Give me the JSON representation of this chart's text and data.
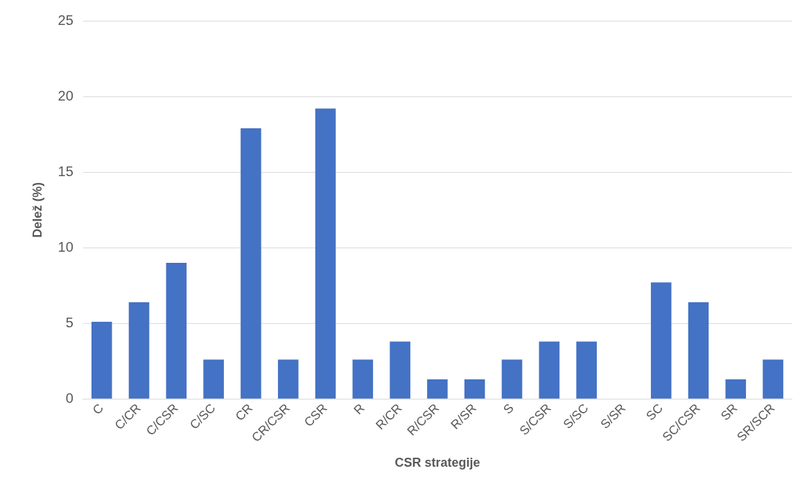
{
  "chart_data": {
    "type": "bar",
    "xlabel": "CSR strategije",
    "ylabel": "Delež (%)",
    "categories": [
      "C",
      "C/CR",
      "C/CSR",
      "C/SC",
      "CR",
      "CR/CSR",
      "CSR",
      "R",
      "R/CR",
      "R/CSR",
      "R/SR",
      "S",
      "S/CSR",
      "S/SC",
      "S/SR",
      "SC",
      "SC/CSR",
      "SR",
      "SR/SCR"
    ],
    "values": [
      5.1,
      6.4,
      9.0,
      2.6,
      17.9,
      2.6,
      19.2,
      2.6,
      3.8,
      1.3,
      1.3,
      2.6,
      3.8,
      3.8,
      0,
      7.7,
      6.4,
      1.3,
      2.6
    ],
    "color": "#4472c4",
    "ylim": [
      0,
      25
    ],
    "yticks": [
      0,
      5,
      10,
      15,
      20,
      25
    ],
    "grid": "y",
    "legend": false
  }
}
